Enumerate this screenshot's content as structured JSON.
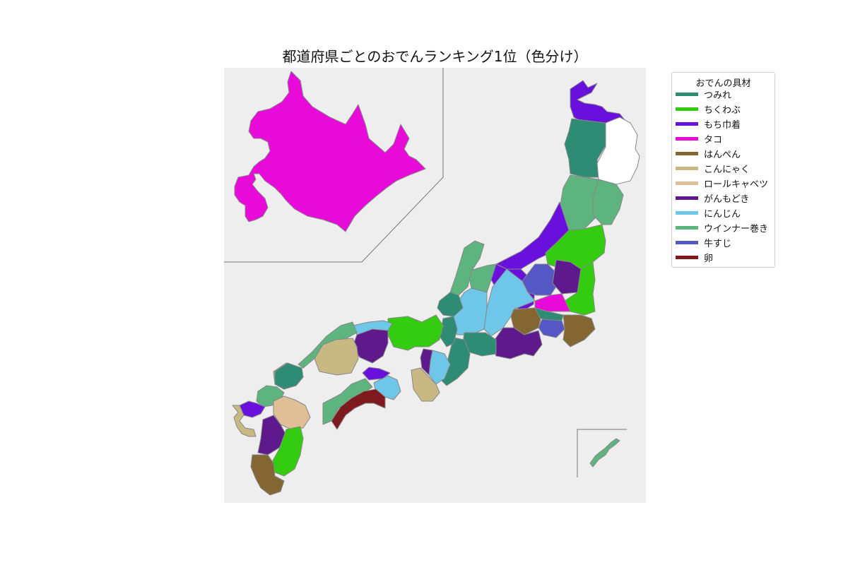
{
  "title": "都道府県ごとのおでんランキング1位（色分け）",
  "legend": {
    "title": "おでんの具材",
    "items": [
      {
        "label": "つみれ",
        "color": "#2e8b74"
      },
      {
        "label": "ちくわぶ",
        "color": "#33cc11"
      },
      {
        "label": "もち巾着",
        "color": "#6a10dd"
      },
      {
        "label": "タコ",
        "color": "#e80ad8"
      },
      {
        "label": "はんぺん",
        "color": "#846632"
      },
      {
        "label": "こんにゃく",
        "color": "#c8b983"
      },
      {
        "label": "ロールキャベツ",
        "color": "#e0be96"
      },
      {
        "label": "がんもどき",
        "color": "#5e1a8c"
      },
      {
        "label": "にんじん",
        "color": "#6ec6e8"
      },
      {
        "label": "ウインナー巻き",
        "color": "#5db47f"
      },
      {
        "label": "牛すじ",
        "color": "#5558c4"
      },
      {
        "label": "卵",
        "color": "#7e1a1e"
      }
    ]
  },
  "map": {
    "sea_color": "#eeeeee",
    "no_data_color": "#ffffff",
    "regions": [
      {
        "id": "hokkaido",
        "category": "タコ"
      },
      {
        "id": "aomori-shimokita",
        "category": "もち巾着"
      },
      {
        "id": "aomori",
        "category": "つみれ"
      },
      {
        "id": "iwate",
        "category": null
      },
      {
        "id": "akita",
        "category": "ウインナー巻き"
      },
      {
        "id": "miyagi",
        "category": "ウインナー巻き"
      },
      {
        "id": "yamagata",
        "category": "もち巾着"
      },
      {
        "id": "fukushima",
        "category": "ちくわぶ"
      },
      {
        "id": "niigata-west",
        "category": "もち巾着"
      },
      {
        "id": "gunma",
        "category": "牛すじ"
      },
      {
        "id": "tochigi",
        "category": "がんもどき"
      },
      {
        "id": "ibaraki",
        "category": "ちくわぶ"
      },
      {
        "id": "saitama",
        "category": "タコ"
      },
      {
        "id": "tokyo",
        "category": "つみれ"
      },
      {
        "id": "kanagawa",
        "category": "牛すじ"
      },
      {
        "id": "chiba",
        "category": "はんぺん"
      },
      {
        "id": "yamanashi",
        "category": "はんぺん"
      },
      {
        "id": "shizuoka",
        "category": "がんもどき"
      },
      {
        "id": "nagano",
        "category": "にんじん"
      },
      {
        "id": "toyama",
        "category": "ウインナー巻き"
      },
      {
        "id": "ishikawa",
        "category": "ウインナー巻き"
      },
      {
        "id": "gifu",
        "category": "にんじん"
      },
      {
        "id": "fukui",
        "category": "つみれ"
      },
      {
        "id": "aichi",
        "category": "つみれ"
      },
      {
        "id": "mie",
        "category": "つみれ"
      },
      {
        "id": "shiga",
        "category": "つみれ"
      },
      {
        "id": "kyoto",
        "category": "ちくわぶ"
      },
      {
        "id": "nara",
        "category": "にんじん"
      },
      {
        "id": "osaka",
        "category": "がんもどき"
      },
      {
        "id": "wakayama",
        "category": "こんにゃく"
      },
      {
        "id": "hyogo",
        "category": "がんもどき"
      },
      {
        "id": "tottori",
        "category": "にんじん"
      },
      {
        "id": "shimane",
        "category": "ウインナー巻き"
      },
      {
        "id": "okayama",
        "category": "こんにゃく"
      },
      {
        "id": "hiroshima",
        "category": "こんにゃく"
      },
      {
        "id": "yamaguchi",
        "category": "つみれ"
      },
      {
        "id": "kagawa",
        "category": "もち巾着"
      },
      {
        "id": "tokushima",
        "category": "にんじん"
      },
      {
        "id": "ehime",
        "category": "ウインナー巻き"
      },
      {
        "id": "kochi",
        "category": "卵"
      },
      {
        "id": "fukuoka",
        "category": "ウインナー巻き"
      },
      {
        "id": "saga",
        "category": "もち巾着"
      },
      {
        "id": "nagasaki",
        "category": "こんにゃく"
      },
      {
        "id": "oita",
        "category": "ロールキャベツ"
      },
      {
        "id": "kumamoto",
        "category": "がんもどき"
      },
      {
        "id": "miyazaki",
        "category": "ちくわぶ"
      },
      {
        "id": "kagoshima",
        "category": "はんぺん"
      },
      {
        "id": "okinawa",
        "category": "ウインナー巻き"
      }
    ]
  }
}
